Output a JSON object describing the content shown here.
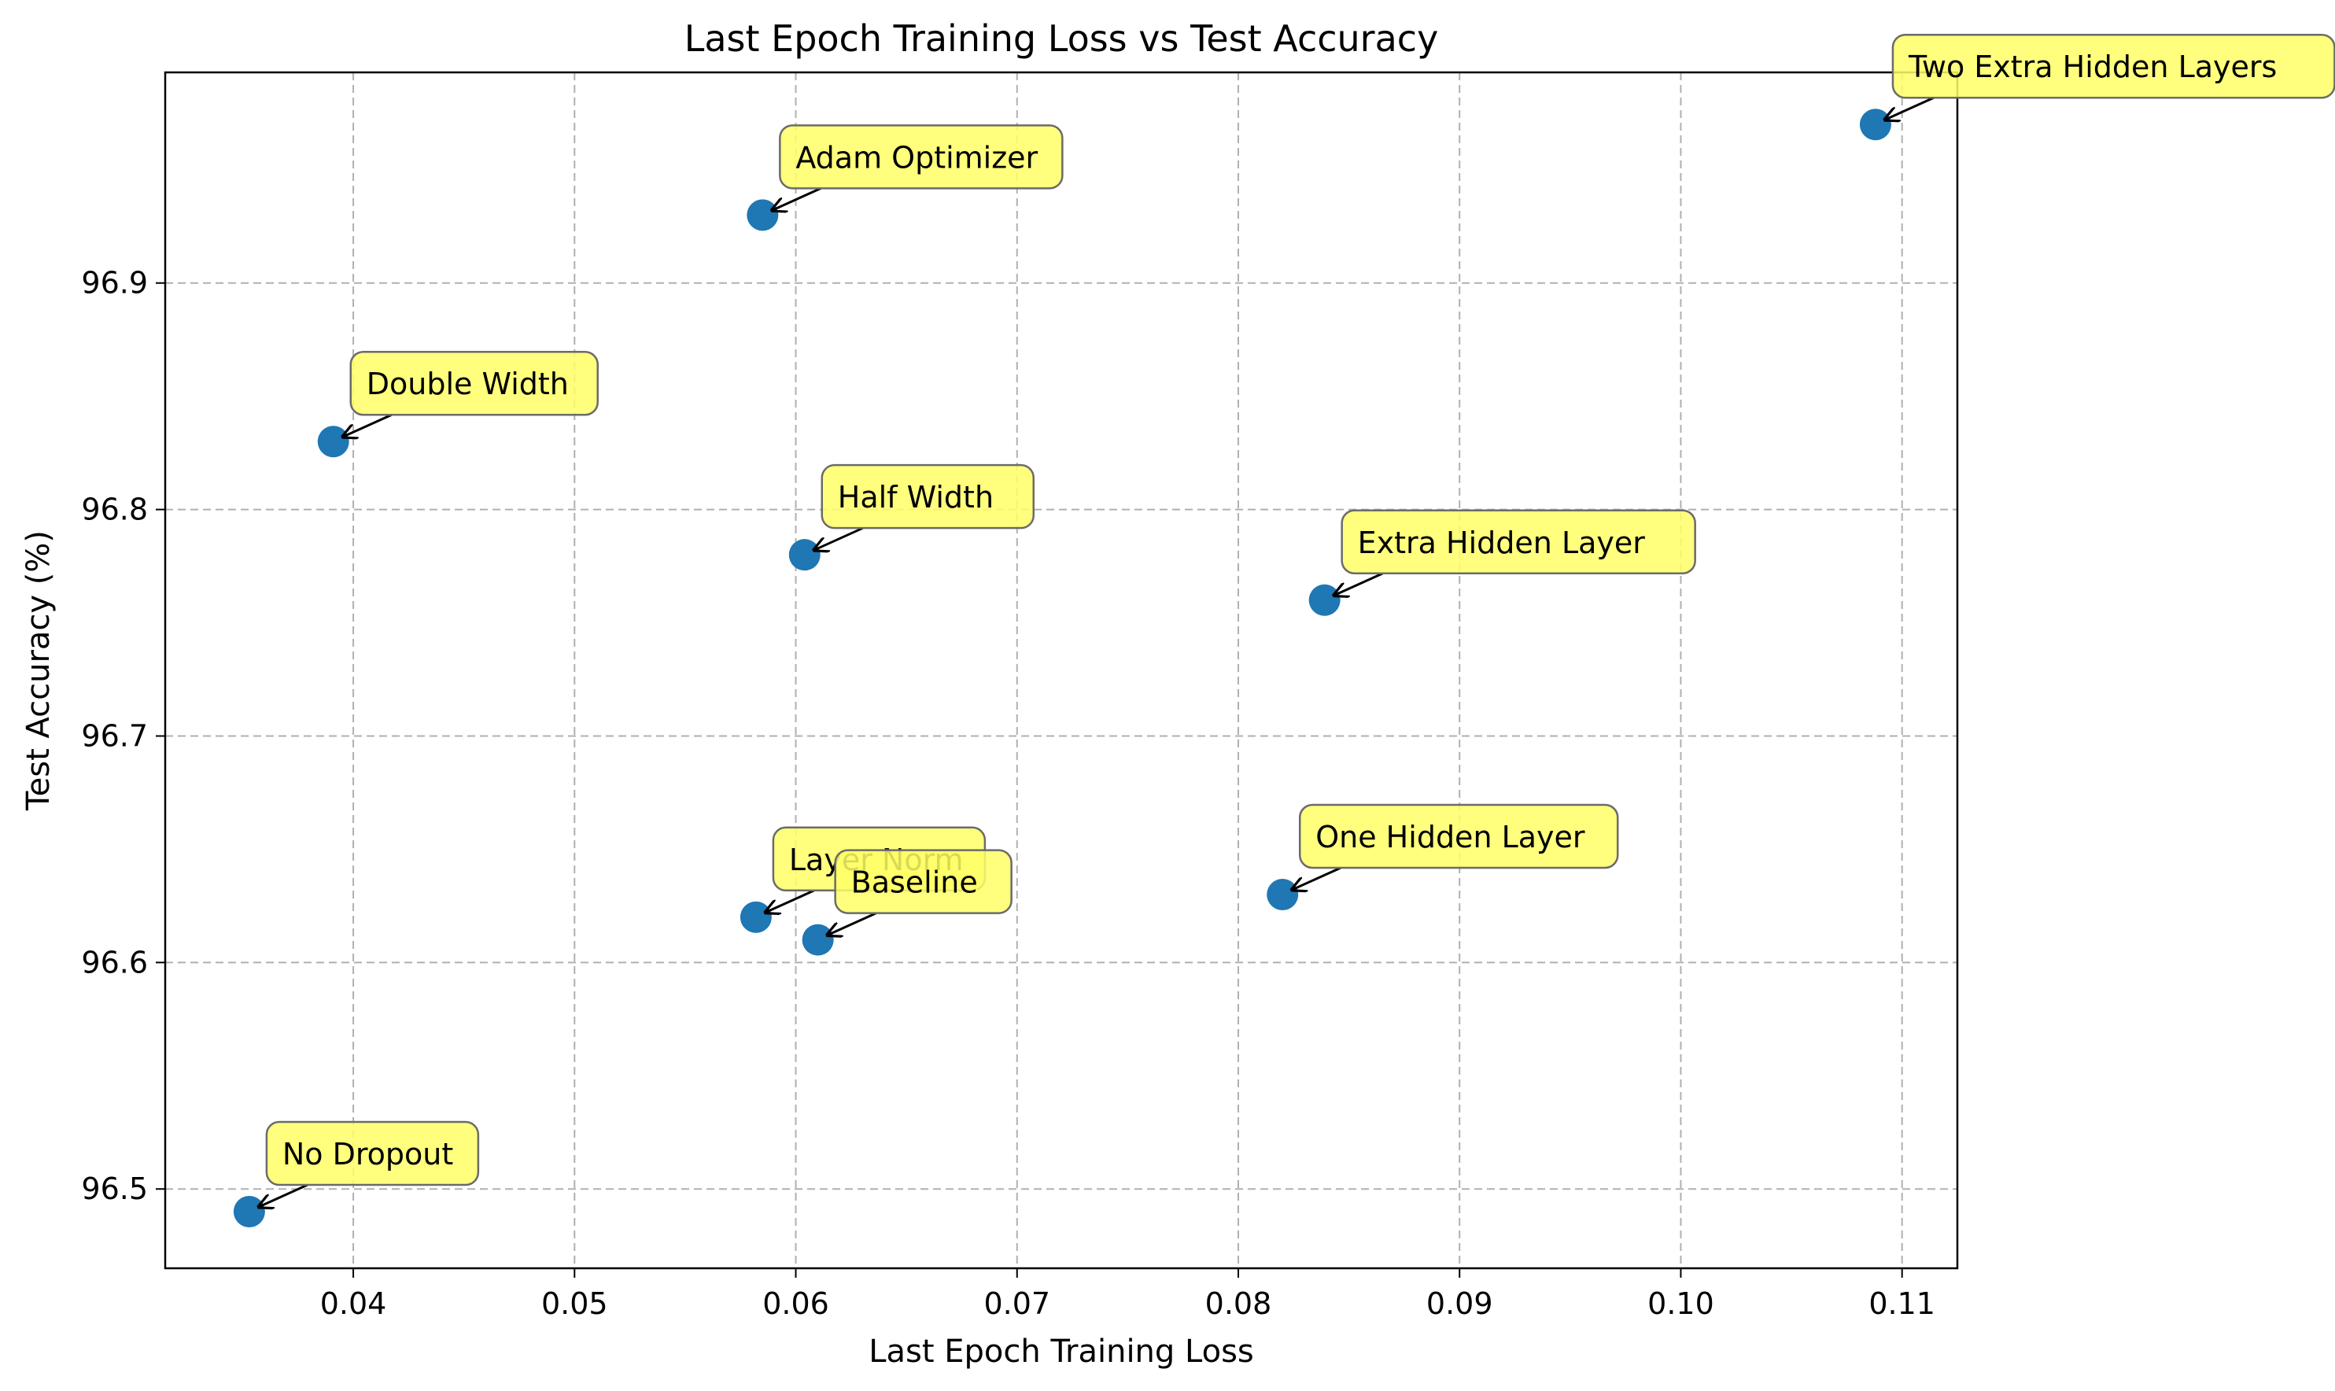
{
  "chart_data": {
    "type": "scatter",
    "title": "Last Epoch Training Loss vs Test Accuracy",
    "xlabel": "Last Epoch Training Loss",
    "ylabel": "Test Accuracy (%)",
    "xlim": [
      0.0315,
      0.1125
    ],
    "ylim": [
      96.465,
      96.993
    ],
    "xticks": [
      0.04,
      0.05,
      0.06,
      0.07,
      0.08,
      0.09,
      0.1,
      0.11
    ],
    "xtick_labels": [
      "0.04",
      "0.05",
      "0.06",
      "0.07",
      "0.08",
      "0.09",
      "0.10",
      "0.11"
    ],
    "yticks": [
      96.5,
      96.6,
      96.7,
      96.8,
      96.9
    ],
    "ytick_labels": [
      "96.5",
      "96.6",
      "96.7",
      "96.8",
      "96.9"
    ],
    "grid": true,
    "grid_style": "dashed",
    "marker_color": "#1f77b4",
    "annotation_fill": "#ffff66",
    "annotation_edge": "#6b6b6b",
    "points": [
      {
        "label": "Two Extra Hidden Layers",
        "x": 0.1088,
        "y": 96.97
      },
      {
        "label": "Adam Optimizer",
        "x": 0.0585,
        "y": 96.93
      },
      {
        "label": "Double Width",
        "x": 0.0391,
        "y": 96.83
      },
      {
        "label": "Half Width",
        "x": 0.0604,
        "y": 96.78
      },
      {
        "label": "Extra Hidden Layer",
        "x": 0.0839,
        "y": 96.76
      },
      {
        "label": "One Hidden Layer",
        "x": 0.082,
        "y": 96.63
      },
      {
        "label": "Layer Norm",
        "x": 0.0582,
        "y": 96.62
      },
      {
        "label": "Baseline",
        "x": 0.061,
        "y": 96.61
      },
      {
        "label": "No Dropout",
        "x": 0.0353,
        "y": 96.49
      }
    ]
  }
}
